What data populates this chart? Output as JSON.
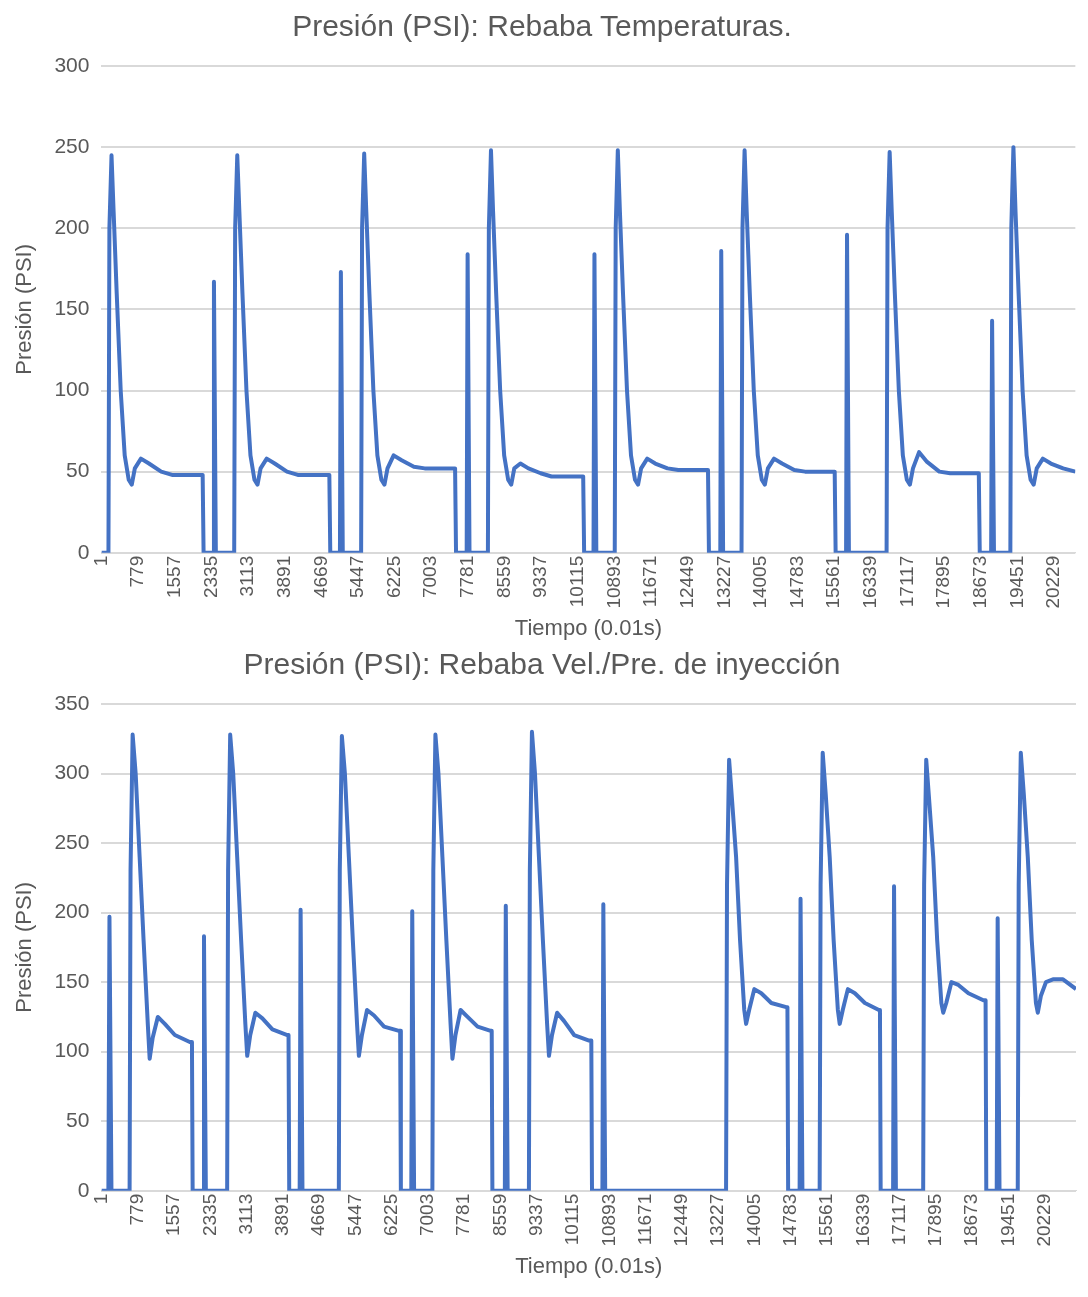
{
  "chart_data": [
    {
      "type": "line",
      "title": "Presión (PSI): Rebaba Temperaturas.",
      "xlabel": "Tiempo (0.01s)",
      "ylabel": "Presión (PSI)",
      "xlim": [
        1,
        20680
      ],
      "ylim": [
        0,
        300
      ],
      "yticks": [
        0,
        50,
        100,
        150,
        200,
        250,
        300
      ],
      "xticks": [
        1,
        779,
        1557,
        2335,
        3113,
        3891,
        4669,
        5447,
        6225,
        7003,
        7781,
        8559,
        9337,
        10115,
        10893,
        11671,
        12449,
        13227,
        14005,
        14783,
        15561,
        16339,
        17117,
        17895,
        18673,
        19451,
        20229
      ],
      "grid": "y",
      "legend": false,
      "marker": "none",
      "line_style": "solid",
      "series": [
        {
          "color": "#4472c4",
          "x": [
            1,
            150,
            170,
            215,
            260,
            325,
            410,
            495,
            580,
            645,
            710,
            840,
            1010,
            1270,
            1500,
            2150,
            2170,
            2370,
            2390,
            2430,
            2820,
            2840,
            2885,
            2930,
            2995,
            3080,
            3165,
            3250,
            3315,
            3380,
            3510,
            3680,
            3940,
            4170,
            4840,
            4860,
            5065,
            5085,
            5125,
            5515,
            5535,
            5580,
            5625,
            5690,
            5775,
            5860,
            5945,
            6010,
            6075,
            6205,
            6375,
            6635,
            6865,
            7510,
            7530,
            7756,
            7776,
            7816,
            8207,
            8227,
            8272,
            8317,
            8382,
            8467,
            8552,
            8637,
            8702,
            8767,
            8897,
            9067,
            9327,
            9557,
            10230,
            10250,
            10449,
            10469,
            10509,
            10900,
            10920,
            10965,
            11010,
            11075,
            11160,
            11245,
            11330,
            11395,
            11460,
            11590,
            11760,
            12020,
            12250,
            12880,
            12900,
            13141,
            13161,
            13201,
            13592,
            13612,
            13657,
            13702,
            13767,
            13852,
            13937,
            14022,
            14087,
            14152,
            14282,
            14452,
            14712,
            14942,
            15570,
            15590,
            15812,
            15832,
            15872,
            16672,
            16692,
            16737,
            16782,
            16847,
            16932,
            17017,
            17102,
            17167,
            17232,
            17362,
            17532,
            17792,
            18022,
            18630,
            18650,
            18892,
            18912,
            18952,
            19300,
            19320,
            19365,
            19410,
            19475,
            19560,
            19645,
            19730,
            19795,
            19860,
            19990,
            20160,
            20420,
            20680
          ],
          "values": [
            0,
            0,
            200,
            245,
            210,
            160,
            100,
            60,
            45,
            42,
            52,
            58,
            55,
            50,
            48,
            48,
            0,
            0,
            167,
            0,
            0,
            200,
            245,
            210,
            160,
            100,
            60,
            45,
            42,
            52,
            58,
            55,
            50,
            48,
            48,
            0,
            0,
            173,
            0,
            0,
            200,
            246,
            210,
            160,
            100,
            60,
            45,
            42,
            52,
            60,
            57,
            53,
            52,
            52,
            0,
            0,
            184,
            0,
            0,
            200,
            248,
            210,
            160,
            100,
            60,
            45,
            42,
            52,
            55,
            52,
            49,
            47,
            47,
            0,
            0,
            184,
            0,
            0,
            200,
            248,
            210,
            160,
            100,
            60,
            45,
            42,
            52,
            58,
            55,
            52,
            51,
            51,
            0,
            0,
            186,
            0,
            0,
            200,
            248,
            210,
            160,
            100,
            60,
            45,
            42,
            52,
            58,
            55,
            51,
            50,
            50,
            0,
            0,
            196,
            0,
            0,
            200,
            247,
            210,
            160,
            100,
            60,
            45,
            42,
            52,
            62,
            56,
            50,
            49,
            49,
            0,
            0,
            143,
            0,
            0,
            200,
            250,
            210,
            160,
            100,
            60,
            45,
            42,
            52,
            58,
            55,
            52,
            50
          ]
        }
      ]
    },
    {
      "type": "line",
      "title": "Presión (PSI): Rebaba Vel./Pre. de inyección",
      "xlabel": "Tiempo (0.01s)",
      "ylabel": "Presión (PSI)",
      "xlim": [
        1,
        20900
      ],
      "ylim": [
        0,
        350
      ],
      "yticks": [
        0,
        50,
        100,
        150,
        200,
        250,
        300,
        350
      ],
      "xticks": [
        1,
        779,
        1557,
        2335,
        3113,
        3891,
        4669,
        5447,
        6225,
        7003,
        7781,
        8559,
        9337,
        10115,
        10893,
        11671,
        12449,
        13227,
        14005,
        14783,
        15561,
        16339,
        17117,
        17895,
        18673,
        19451,
        20229
      ],
      "grid": "y",
      "legend": false,
      "marker": "none",
      "line_style": "solid",
      "series": [
        {
          "color": "#4472c4",
          "x": [
            1,
            150,
            173,
            216,
            605,
            625,
            670,
            735,
            820,
            905,
            995,
            1035,
            1100,
            1210,
            1360,
            1575,
            1895,
            1942,
            1957,
            2180,
            2200,
            2240,
            2697,
            2717,
            2762,
            2827,
            2912,
            2997,
            3087,
            3127,
            3192,
            3302,
            3452,
            3667,
            3987,
            4013,
            4028,
            4252,
            4272,
            4312,
            5092,
            5112,
            5157,
            5222,
            5307,
            5392,
            5482,
            5522,
            5587,
            5697,
            5847,
            6062,
            6382,
            6407,
            6422,
            6646,
            6666,
            6706,
            7098,
            7118,
            7163,
            7228,
            7313,
            7398,
            7488,
            7528,
            7593,
            7703,
            7853,
            8068,
            8348,
            8370,
            8385,
            8652,
            8672,
            8712,
            9168,
            9188,
            9233,
            9298,
            9383,
            9468,
            9558,
            9598,
            9663,
            9773,
            9923,
            10138,
            10458,
            10506,
            10521,
            10744,
            10764,
            10804,
            13396,
            13416,
            13461,
            13526,
            13611,
            13696,
            13786,
            13826,
            13891,
            14001,
            14151,
            14366,
            14686,
            14712,
            14727,
            14973,
            14993,
            15033,
            15403,
            15423,
            15468,
            15533,
            15618,
            15703,
            15793,
            15833,
            15898,
            16008,
            16158,
            16373,
            16673,
            16696,
            16711,
            16978,
            16998,
            17038,
            17623,
            17643,
            17688,
            17753,
            17838,
            17923,
            18013,
            18053,
            18118,
            18228,
            18378,
            18593,
            18913,
            18961,
            18976,
            19200,
            19220,
            19260,
            19651,
            19671,
            19716,
            19781,
            19866,
            19951,
            20041,
            20081,
            20146,
            20256,
            20406,
            20621,
            20900
          ],
          "values": [
            0,
            0,
            197,
            0,
            0,
            230,
            328,
            300,
            240,
            180,
            120,
            95,
            110,
            125,
            120,
            112,
            107,
            107,
            0,
            0,
            183,
            0,
            0,
            230,
            328,
            300,
            240,
            180,
            120,
            97,
            112,
            128,
            124,
            116,
            112,
            112,
            0,
            0,
            202,
            0,
            0,
            230,
            327,
            300,
            240,
            180,
            120,
            97,
            112,
            130,
            126,
            118,
            115,
            115,
            0,
            0,
            201,
            0,
            0,
            230,
            328,
            300,
            240,
            180,
            120,
            95,
            112,
            130,
            125,
            118,
            115,
            115,
            0,
            0,
            205,
            0,
            0,
            230,
            330,
            300,
            240,
            180,
            120,
            97,
            112,
            128,
            122,
            112,
            108,
            108,
            0,
            0,
            206,
            0,
            0,
            220,
            310,
            280,
            240,
            180,
            130,
            120,
            130,
            145,
            142,
            135,
            132,
            132,
            0,
            0,
            210,
            0,
            0,
            220,
            315,
            285,
            240,
            180,
            130,
            120,
            130,
            145,
            142,
            135,
            130,
            130,
            0,
            0,
            219,
            0,
            0,
            220,
            310,
            280,
            240,
            180,
            135,
            128,
            135,
            150,
            148,
            142,
            137,
            137,
            0,
            0,
            196,
            0,
            0,
            220,
            315,
            285,
            240,
            180,
            135,
            128,
            140,
            150,
            152,
            152,
            145
          ]
        }
      ]
    }
  ]
}
